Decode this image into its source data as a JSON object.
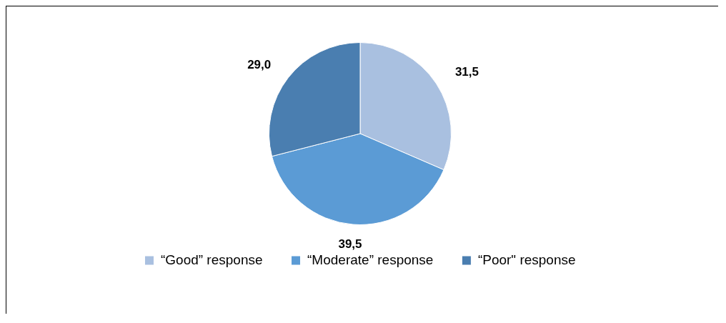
{
  "chart_data": {
    "type": "pie",
    "categories": [
      "“Good” response",
      "“Moderate” response",
      "“Poor\" response"
    ],
    "values": [
      31.5,
      39.5,
      29.0
    ],
    "colors": [
      "#a9c0e0",
      "#5b9bd5",
      "#4a7eb0"
    ],
    "value_labels": [
      "31,5",
      "39,5",
      "29,0"
    ],
    "legend": "bottom"
  }
}
